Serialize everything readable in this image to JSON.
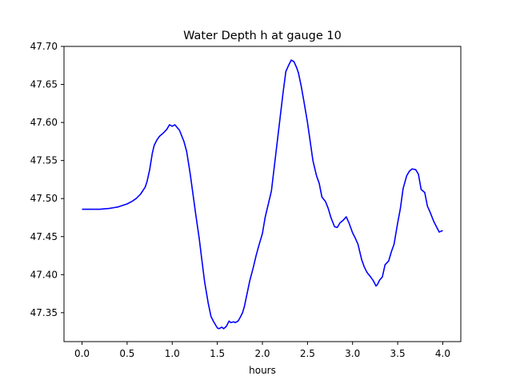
{
  "chart_data": {
    "type": "line",
    "title": "Water Depth h at gauge 10",
    "xlabel": "hours",
    "ylabel": "",
    "xlim": [
      -0.2,
      4.2
    ],
    "ylim": [
      47.312,
      47.7
    ],
    "grid": false,
    "x_ticks": [
      0.0,
      0.5,
      1.0,
      1.5,
      2.0,
      2.5,
      3.0,
      3.5,
      4.0
    ],
    "x_tick_labels": [
      "0.0",
      "0.5",
      "1.0",
      "1.5",
      "2.0",
      "2.5",
      "3.0",
      "3.5",
      "4.0"
    ],
    "y_ticks": [
      47.35,
      47.4,
      47.45,
      47.5,
      47.55,
      47.6,
      47.65,
      47.7
    ],
    "y_tick_labels": [
      "47.35",
      "47.40",
      "47.45",
      "47.50",
      "47.55",
      "47.60",
      "47.65",
      "47.70"
    ],
    "series": [
      {
        "color": "#0000ff",
        "x": [
          0.0,
          0.1,
          0.2,
          0.3,
          0.35,
          0.4,
          0.45,
          0.5,
          0.55,
          0.6,
          0.65,
          0.7,
          0.72,
          0.75,
          0.78,
          0.8,
          0.83,
          0.86,
          0.9,
          0.94,
          0.97,
          1.0,
          1.03,
          1.05,
          1.08,
          1.1,
          1.13,
          1.16,
          1.2,
          1.23,
          1.26,
          1.3,
          1.33,
          1.36,
          1.4,
          1.43,
          1.46,
          1.5,
          1.52,
          1.55,
          1.57,
          1.6,
          1.63,
          1.65,
          1.68,
          1.7,
          1.73,
          1.75,
          1.78,
          1.8,
          1.83,
          1.86,
          1.9,
          1.93,
          1.96,
          2.0,
          2.03,
          2.06,
          2.1,
          2.13,
          2.16,
          2.2,
          2.23,
          2.26,
          2.29,
          2.32,
          2.35,
          2.38,
          2.4,
          2.43,
          2.46,
          2.5,
          2.53,
          2.56,
          2.6,
          2.63,
          2.66,
          2.7,
          2.73,
          2.76,
          2.8,
          2.83,
          2.86,
          2.9,
          2.93,
          2.96,
          3.0,
          3.03,
          3.06,
          3.1,
          3.13,
          3.16,
          3.2,
          3.23,
          3.26,
          3.28,
          3.3,
          3.33,
          3.36,
          3.4,
          3.43,
          3.46,
          3.5,
          3.53,
          3.56,
          3.6,
          3.63,
          3.66,
          3.7,
          3.73,
          3.76,
          3.8,
          3.83,
          3.86,
          3.9,
          3.93,
          3.96,
          4.0
        ],
        "y": [
          47.486,
          47.486,
          47.486,
          47.487,
          47.488,
          47.489,
          47.491,
          47.493,
          47.496,
          47.5,
          47.506,
          47.515,
          47.522,
          47.538,
          47.56,
          47.57,
          47.577,
          47.582,
          47.586,
          47.591,
          47.597,
          47.595,
          47.597,
          47.594,
          47.59,
          47.584,
          47.575,
          47.562,
          47.532,
          47.506,
          47.48,
          47.447,
          47.418,
          47.39,
          47.362,
          47.345,
          47.338,
          47.33,
          47.329,
          47.331,
          47.329,
          47.332,
          47.339,
          47.337,
          47.338,
          47.337,
          47.339,
          47.343,
          47.35,
          47.358,
          47.375,
          47.392,
          47.41,
          47.425,
          47.438,
          47.454,
          47.475,
          47.49,
          47.51,
          47.54,
          47.57,
          47.61,
          47.64,
          47.667,
          47.675,
          47.682,
          47.68,
          47.672,
          47.665,
          47.648,
          47.628,
          47.6,
          47.575,
          47.55,
          47.53,
          47.52,
          47.502,
          47.496,
          47.487,
          47.475,
          47.463,
          47.462,
          47.468,
          47.472,
          47.476,
          47.468,
          47.455,
          47.448,
          47.44,
          47.42,
          47.41,
          47.403,
          47.397,
          47.392,
          47.385,
          47.388,
          47.393,
          47.397,
          47.413,
          47.418,
          47.43,
          47.44,
          47.468,
          47.487,
          47.513,
          47.53,
          47.536,
          47.539,
          47.538,
          47.532,
          47.512,
          47.508,
          47.49,
          47.482,
          47.47,
          47.463,
          47.456,
          47.458
        ]
      }
    ]
  }
}
